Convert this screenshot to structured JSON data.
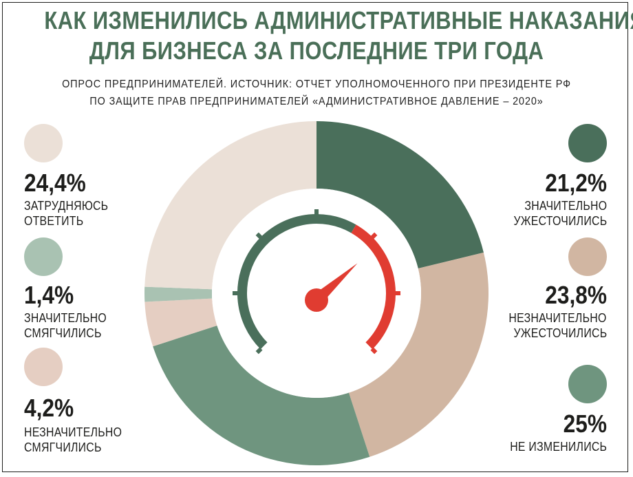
{
  "header": {
    "title_line1": "КАК ИЗМЕНИЛИСЬ АДМИНИСТРАТИВНЫЕ НАКАЗАНИЯ",
    "title_line2": "ДЛЯ БИЗНЕСА ЗА ПОСЛЕДНИЕ ТРИ ГОДА",
    "subtitle_line1": "ОПРОС ПРЕДПРИНИМАТЕЛЕЙ. ИСТОЧНИК: ОТЧЕТ УПОЛНОМОЧЕННОГО ПРИ ПРЕЗИДЕНТЕ РФ",
    "subtitle_line2": "ПО ЗАЩИТЕ ПРАВ ПРЕДПРИНИМАТЕЛЕЙ «АДМИНИСТРАТИВНОЕ ДАВЛЕНИЕ – 2020»"
  },
  "legend": {
    "left": [
      {
        "percent": "24,4%",
        "line1": "ЗАТРУДНЯЮСЬ",
        "line2": "ОТВЕТИТЬ",
        "color": "#ebe0d7"
      },
      {
        "percent": "1,4%",
        "line1": "ЗНАЧИТЕЛЬНО",
        "line2": "СМЯГЧИЛИСЬ",
        "color": "#a9c2b2"
      },
      {
        "percent": "4,2%",
        "line1": "НЕЗНАЧИТЕЛЬНО",
        "line2": "СМЯГЧИЛИСЬ",
        "color": "#e5cec2"
      }
    ],
    "right": [
      {
        "percent": "21,2%",
        "line1": "ЗНАЧИТЕЛЬНО",
        "line2": "УЖЕСТОЧИЛИСЬ",
        "color": "#4a6f5b"
      },
      {
        "percent": "23,8%",
        "line1": "НЕЗНАЧИТЕЛЬНО",
        "line2": "УЖЕСТОЧИЛИСЬ",
        "color": "#d1b6a2"
      },
      {
        "percent": "25%",
        "line1": "",
        "line2": "НЕ ИЗМЕНИЛИСЬ",
        "color": "#6f957f"
      }
    ]
  },
  "gauge": {
    "arc_color": "#4a6f5b",
    "danger_color": "#e03c31",
    "needle_color": "#e03c31"
  },
  "chart_data": {
    "type": "pie",
    "style": "donut",
    "title": "КАК ИЗМЕНИЛИСЬ АДМИНИСТРАТИВНЫЕ НАКАЗАНИЯ ДЛЯ БИЗНЕСА ЗА ПОСЛЕДНИЕ ТРИ ГОДА",
    "slices": [
      {
        "label": "ЗНАЧИТЕЛЬНО УЖЕСТОЧИЛИСЬ",
        "value": 21.2,
        "color": "#4a6f5b"
      },
      {
        "label": "НЕЗНАЧИТЕЛЬНО УЖЕСТОЧИЛИСЬ",
        "value": 23.8,
        "color": "#d1b6a2"
      },
      {
        "label": "НЕ ИЗМЕНИЛИСЬ",
        "value": 25,
        "color": "#6f957f"
      },
      {
        "label": "НЕЗНАЧИТЕЛЬНО СМЯГЧИЛИСЬ",
        "value": 4.2,
        "color": "#e5cec2"
      },
      {
        "label": "ЗНАЧИТЕЛЬНО СМЯГЧИЛИСЬ",
        "value": 1.4,
        "color": "#a9c2b2"
      },
      {
        "label": "ЗАТРУДНЯЮСЬ ОТВЕТИТЬ",
        "value": 24.4,
        "color": "#ebe0d7"
      }
    ]
  }
}
